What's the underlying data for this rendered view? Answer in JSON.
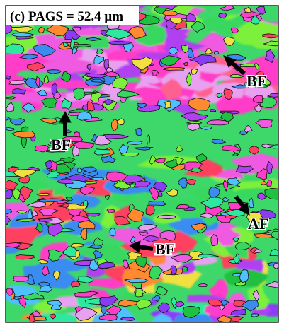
{
  "header": {
    "title": "(c) PAGS = 52.4 μm"
  },
  "annotations": [
    {
      "label": "BF"
    },
    {
      "label": "BF"
    },
    {
      "label": "AF"
    },
    {
      "label": "BF"
    }
  ]
}
